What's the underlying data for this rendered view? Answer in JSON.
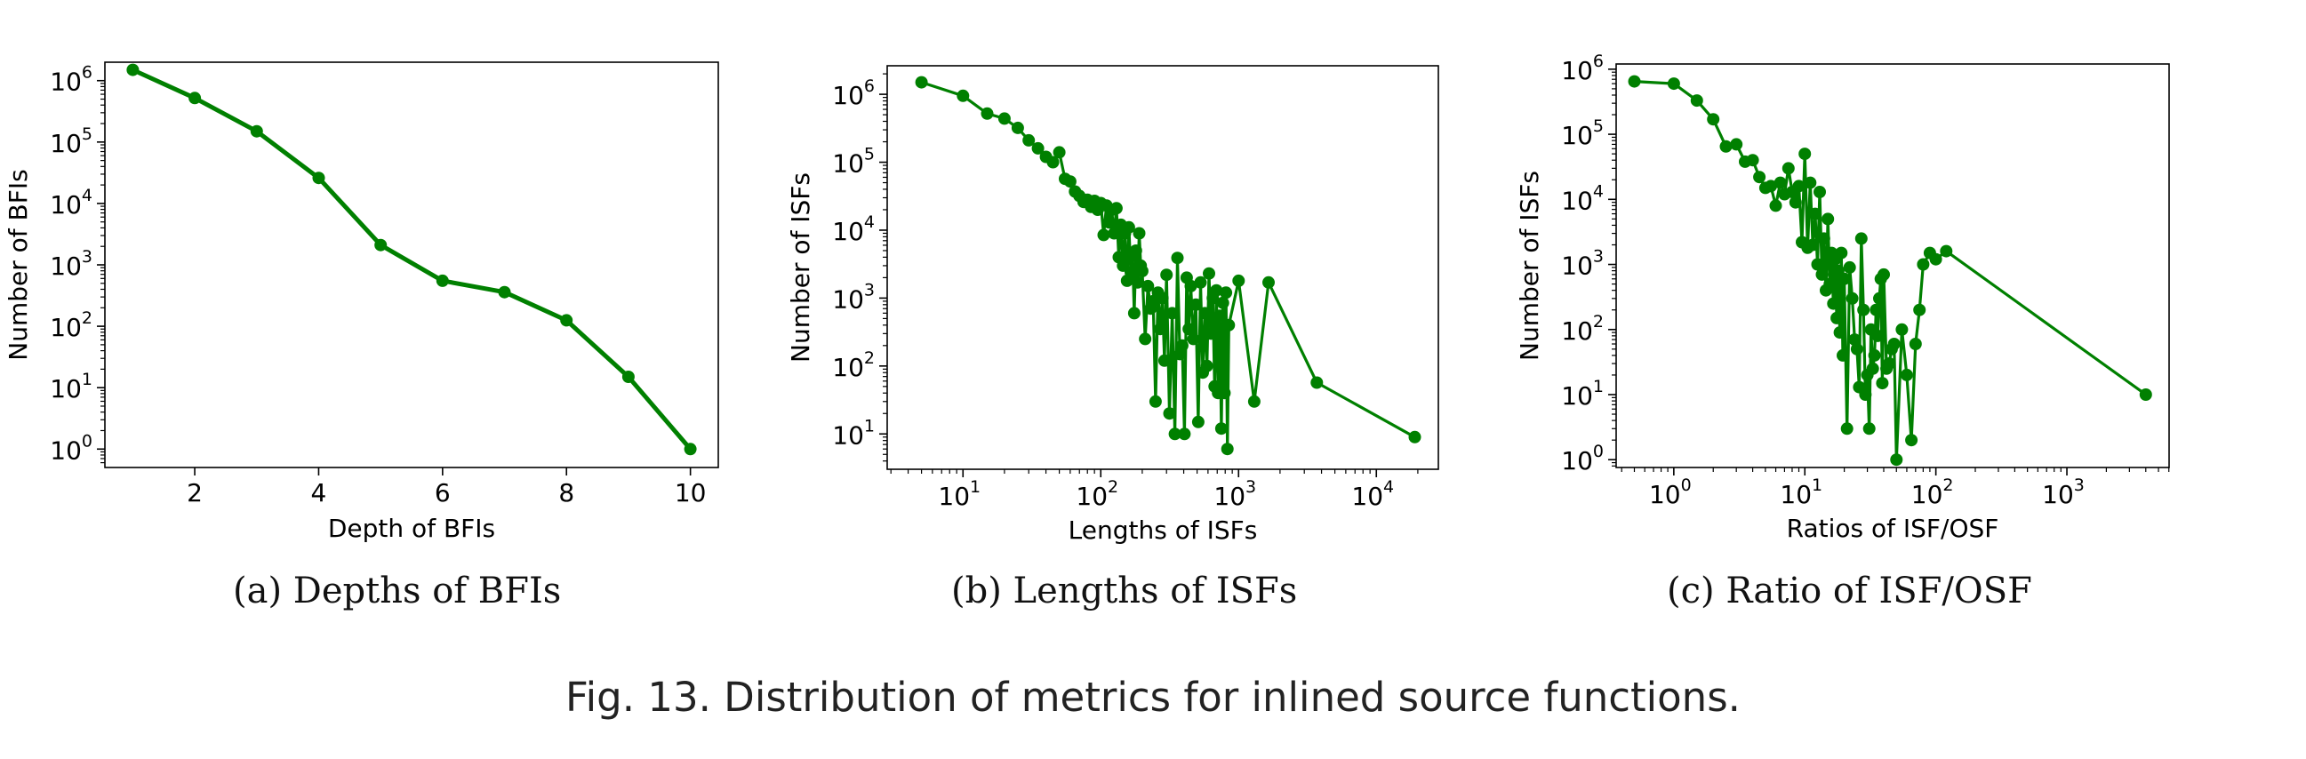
{
  "figure_caption": "Fig. 13.  Distribution of metrics for inlined source functions.",
  "colors": {
    "series": "#008000"
  },
  "chart_data": [
    {
      "type": "line",
      "subcaption": "(a)  Depths of BFIs",
      "xlabel": "Depth of BFIs",
      "ylabel": "Number of BFIs",
      "xscale": "linear",
      "yscale": "log",
      "xlim": [
        0.55,
        10.45
      ],
      "ylim_exp": [
        -0.3,
        6.3
      ],
      "xticks": [
        2,
        4,
        6,
        8,
        10
      ],
      "xtick_labels": [
        "2",
        "4",
        "6",
        "8",
        "10"
      ],
      "yticks_exp": [
        0,
        1,
        2,
        3,
        4,
        5,
        6
      ],
      "series": [
        {
          "x": [
            1,
            2,
            3,
            4,
            5,
            6,
            7,
            8,
            9,
            10
          ],
          "y": [
            1500000,
            520000,
            150000,
            26000,
            2100,
            550,
            360,
            125,
            15,
            1
          ]
        }
      ]
    },
    {
      "type": "line",
      "subcaption": "(b)  Lengths of ISFs",
      "xlabel": "Lengths of ISFs",
      "ylabel": "Number of ISFs",
      "xscale": "log",
      "yscale": "log",
      "xlim_exp": [
        0.45,
        4.45
      ],
      "ylim_exp": [
        0.48,
        6.42
      ],
      "xticks_exp": [
        1,
        2,
        3,
        4
      ],
      "yticks_exp": [
        1,
        2,
        3,
        4,
        5,
        6
      ],
      "series": [
        {
          "x": [
            5,
            10,
            15,
            20,
            25,
            30,
            35,
            40,
            45,
            50,
            55,
            60,
            65,
            70,
            75,
            80,
            85,
            90,
            95,
            100,
            105,
            110,
            115,
            120,
            125,
            130,
            135,
            140,
            145,
            150,
            155,
            160,
            165,
            170,
            175,
            180,
            185,
            190,
            195,
            200,
            210,
            220,
            230,
            240,
            250,
            260,
            270,
            280,
            290,
            300,
            315,
            330,
            345,
            360,
            375,
            390,
            405,
            420,
            435,
            450,
            470,
            490,
            510,
            530,
            550,
            570,
            590,
            610,
            630,
            650,
            670,
            690,
            710,
            730,
            750,
            770,
            790,
            810,
            830,
            850,
            1000,
            1300,
            1650,
            3700,
            19000
          ],
          "y": [
            1500000,
            950000,
            520000,
            440000,
            320000,
            210000,
            160000,
            120000,
            100000,
            140000,
            57000,
            52000,
            37000,
            32000,
            26000,
            28000,
            22000,
            27000,
            20000,
            25000,
            8500,
            23000,
            13000,
            20000,
            9000,
            21000,
            4000,
            12000,
            3000,
            9000,
            1800,
            11000,
            2400,
            4200,
            600,
            5000,
            1700,
            9000,
            3000,
            2500,
            250,
            1500,
            700,
            900,
            30,
            1200,
            350,
            1000,
            120,
            2200,
            20,
            600,
            10,
            3900,
            150,
            200,
            10,
            2000,
            350,
            1500,
            250,
            800,
            15,
            1700,
            80,
            600,
            100,
            2300,
            300,
            1000,
            50,
            1300,
            40,
            550,
            12,
            850,
            40,
            1200,
            6,
            400,
            1800,
            30,
            1700,
            57,
            9
          ]
        }
      ]
    },
    {
      "type": "line",
      "subcaption": "(c)  Ratio of ISF/OSF",
      "xlabel": "Ratios of ISF/OSF",
      "ylabel": "Number of ISFs",
      "xscale": "log",
      "yscale": "log",
      "xlim_exp": [
        -0.44,
        3.78
      ],
      "ylim_exp": [
        -0.12,
        6.08
      ],
      "xticks_exp": [
        0,
        1,
        2,
        3
      ],
      "yticks_exp": [
        0,
        1,
        2,
        3,
        4,
        5,
        6
      ],
      "series": [
        {
          "x": [
            0.5,
            1,
            1.5,
            2,
            2.5,
            3,
            3.5,
            4,
            4.5,
            5,
            5.5,
            6,
            6.5,
            7,
            7.5,
            8,
            8.5,
            9,
            9.5,
            10,
            10.5,
            11,
            11.5,
            12,
            12.5,
            13,
            13.5,
            14,
            14.5,
            15,
            15.5,
            16,
            16.5,
            17,
            17.5,
            18,
            18.5,
            19,
            19.5,
            20,
            21,
            22,
            23,
            24,
            25,
            26,
            27,
            28,
            29,
            30,
            31,
            32,
            33,
            34,
            35,
            36,
            37,
            38,
            39,
            40,
            42,
            44,
            46,
            48,
            50,
            55,
            60,
            65,
            70,
            75,
            80,
            90,
            100,
            120,
            4000
          ],
          "y": [
            650000,
            600000,
            330000,
            170000,
            65000,
            70000,
            38000,
            40000,
            22000,
            15000,
            16000,
            8000,
            18000,
            12000,
            30000,
            13000,
            9000,
            16000,
            2200,
            50000,
            1800,
            18000,
            2000,
            6000,
            1000,
            13000,
            700,
            2500,
            400,
            5000,
            500,
            1500,
            250,
            1200,
            150,
            800,
            90,
            1500,
            40,
            600,
            3,
            900,
            300,
            70,
            50,
            13,
            2500,
            200,
            10,
            20,
            3,
            100,
            25,
            40,
            200,
            80,
            300,
            600,
            15,
            700,
            25,
            30,
            50,
            60,
            1,
            100,
            20,
            2,
            60,
            200,
            1000,
            1500,
            1200,
            1600,
            10
          ]
        }
      ]
    }
  ]
}
